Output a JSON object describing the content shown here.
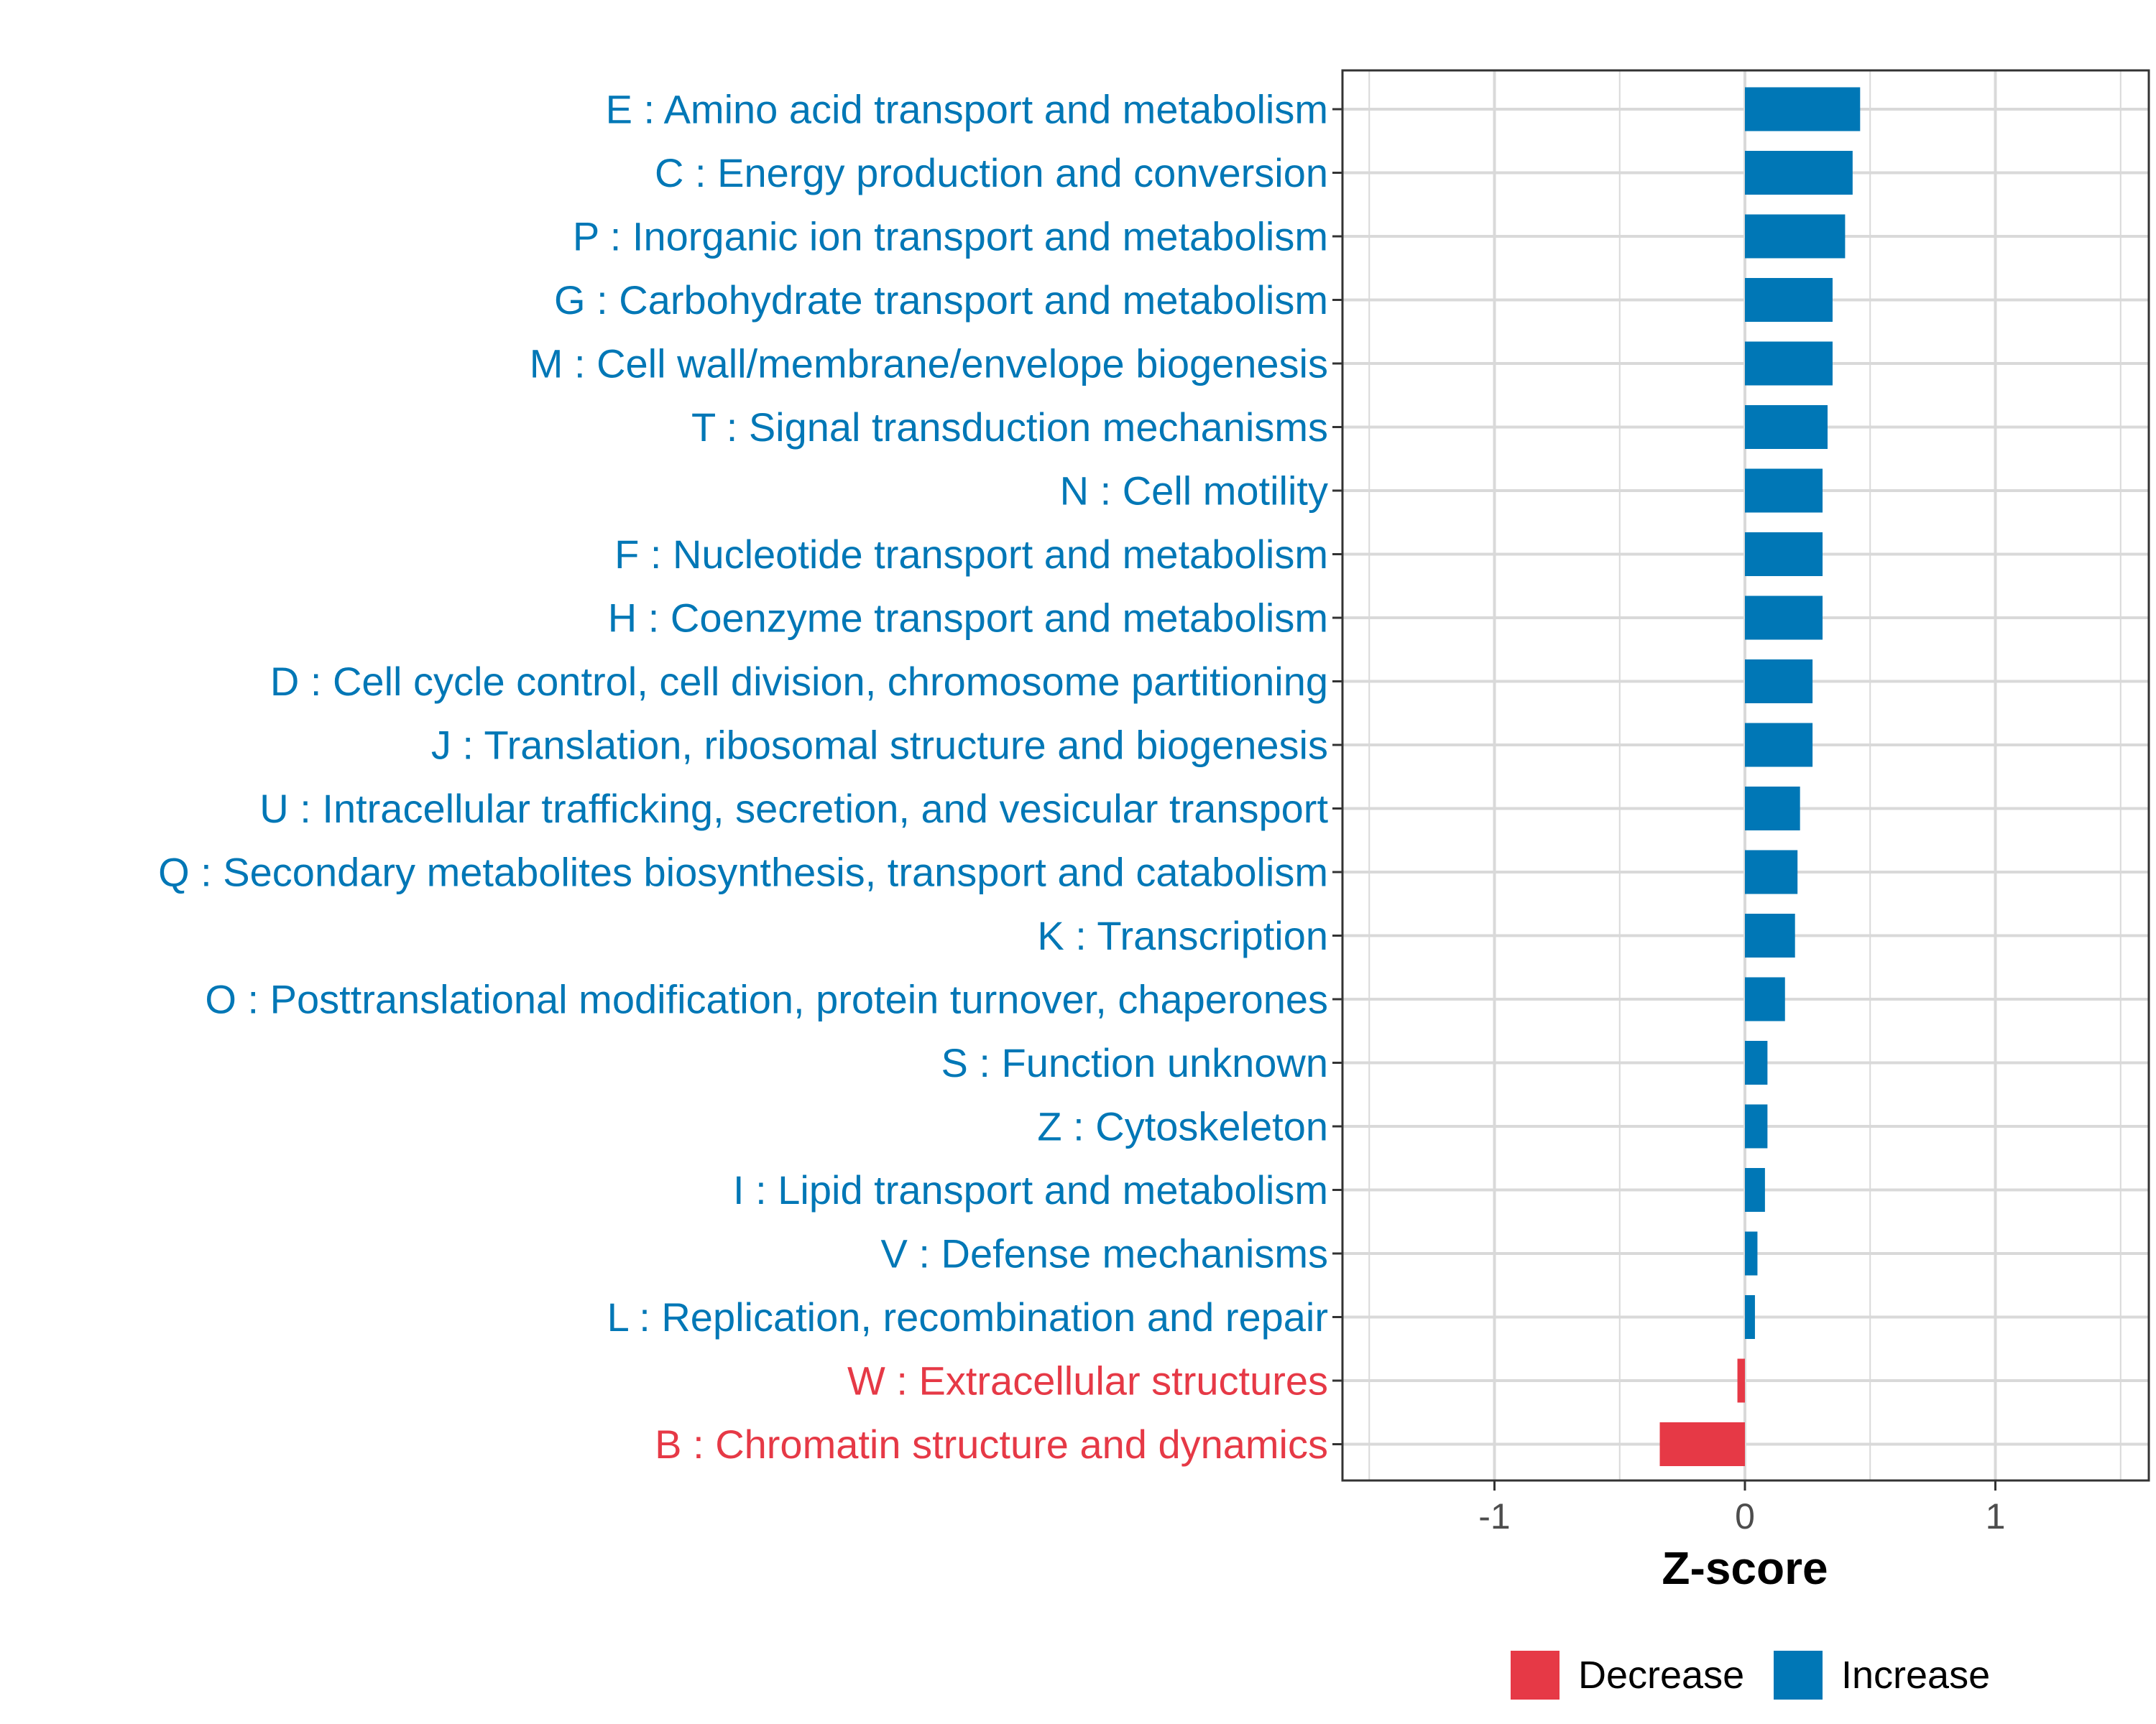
{
  "chart_data": {
    "type": "bar",
    "orientation": "horizontal",
    "title": "",
    "xlabel": "Z-score",
    "ylabel": "",
    "xlim": [
      -1.6,
      1.6
    ],
    "xticks": [
      -1,
      0,
      1
    ],
    "xtick_labels": [
      "-1",
      "0",
      "1"
    ],
    "grid": true,
    "categories": [
      "E : Amino acid transport and metabolism",
      "C : Energy production and conversion",
      "P : Inorganic ion transport and metabolism",
      "G : Carbohydrate transport and metabolism",
      "M : Cell wall/membrane/envelope biogenesis",
      "T : Signal transduction mechanisms",
      "N : Cell motility",
      "F : Nucleotide transport and metabolism",
      "H : Coenzyme transport and metabolism",
      "D : Cell cycle control, cell division, chromosome partitioning",
      "J : Translation, ribosomal structure and biogenesis",
      "U : Intracellular trafficking, secretion, and vesicular transport",
      "Q : Secondary metabolites biosynthesis, transport and catabolism",
      "K : Transcription",
      "O : Posttranslational modification, protein turnover, chaperones",
      "S : Function unknown",
      "Z : Cytoskeleton",
      "I : Lipid transport and metabolism",
      "V : Defense mechanisms",
      "L : Replication, recombination and repair",
      "W : Extracellular structures",
      "B : Chromatin structure and dynamics"
    ],
    "values": [
      0.46,
      0.43,
      0.4,
      0.35,
      0.35,
      0.33,
      0.31,
      0.31,
      0.31,
      0.27,
      0.27,
      0.22,
      0.21,
      0.2,
      0.16,
      0.09,
      0.09,
      0.08,
      0.05,
      0.04,
      -0.03,
      -0.34
    ],
    "groups": [
      "Increase",
      "Increase",
      "Increase",
      "Increase",
      "Increase",
      "Increase",
      "Increase",
      "Increase",
      "Increase",
      "Increase",
      "Increase",
      "Increase",
      "Increase",
      "Increase",
      "Increase",
      "Increase",
      "Increase",
      "Increase",
      "Increase",
      "Increase",
      "Decrease",
      "Decrease"
    ],
    "legend": {
      "position": "bottom",
      "entries": [
        {
          "name": "Decrease",
          "color": "#e63946"
        },
        {
          "name": "Increase",
          "color": "#0077b6"
        }
      ]
    }
  },
  "colors": {
    "increase": "#0077b6",
    "decrease": "#e63946",
    "grid": "#d9d9d9",
    "tick_text": "#4d4d4d",
    "panel_border": "#333333"
  }
}
